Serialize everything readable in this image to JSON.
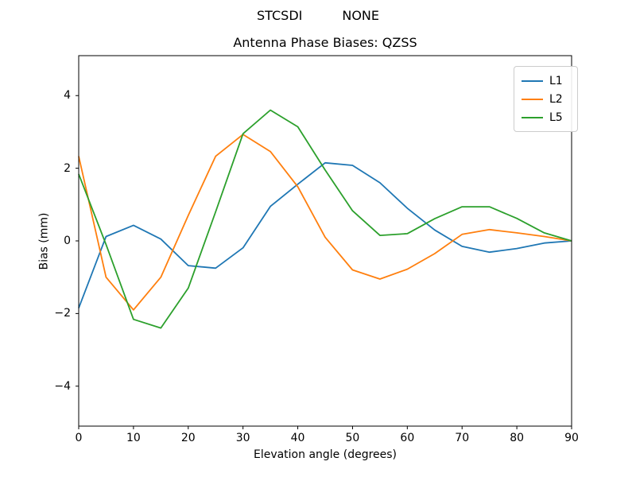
{
  "suptitle": {
    "left": "STCSDI",
    "right": "NONE"
  },
  "chart_data": {
    "type": "line",
    "title": "Antenna Phase Biases: QZSS",
    "xlabel": "Elevation angle (degrees)",
    "ylabel": "Bias (mm)",
    "xlim": [
      0,
      90
    ],
    "ylim": [
      -5.1,
      5.1
    ],
    "xticks": [
      0,
      10,
      20,
      30,
      40,
      50,
      60,
      70,
      80,
      90
    ],
    "yticks": [
      -4,
      -2,
      0,
      2,
      4
    ],
    "grid": false,
    "legend_position": "upper right",
    "x": [
      0,
      5,
      10,
      15,
      20,
      25,
      30,
      35,
      40,
      45,
      50,
      55,
      60,
      65,
      70,
      75,
      80,
      85,
      90
    ],
    "series": [
      {
        "name": "L1",
        "color": "#1f77b4",
        "values": [
          -1.85,
          0.12,
          0.43,
          0.05,
          -0.68,
          -0.75,
          -0.19,
          0.95,
          1.56,
          2.15,
          2.08,
          1.6,
          0.9,
          0.3,
          -0.15,
          -0.31,
          -0.21,
          -0.06,
          0.0
        ]
      },
      {
        "name": "L2",
        "color": "#ff7f0e",
        "values": [
          2.33,
          -1.0,
          -1.9,
          -1.0,
          0.7,
          2.33,
          2.93,
          2.46,
          1.49,
          0.1,
          -0.8,
          -1.05,
          -0.78,
          -0.35,
          0.18,
          0.31,
          0.22,
          0.12,
          0.0
        ]
      },
      {
        "name": "L5",
        "color": "#2ca02c",
        "values": [
          1.84,
          -0.1,
          -2.16,
          -2.4,
          -1.3,
          0.8,
          2.95,
          3.6,
          3.14,
          1.95,
          0.83,
          0.15,
          0.2,
          0.61,
          0.94,
          0.94,
          0.62,
          0.22,
          0.0
        ]
      }
    ]
  }
}
